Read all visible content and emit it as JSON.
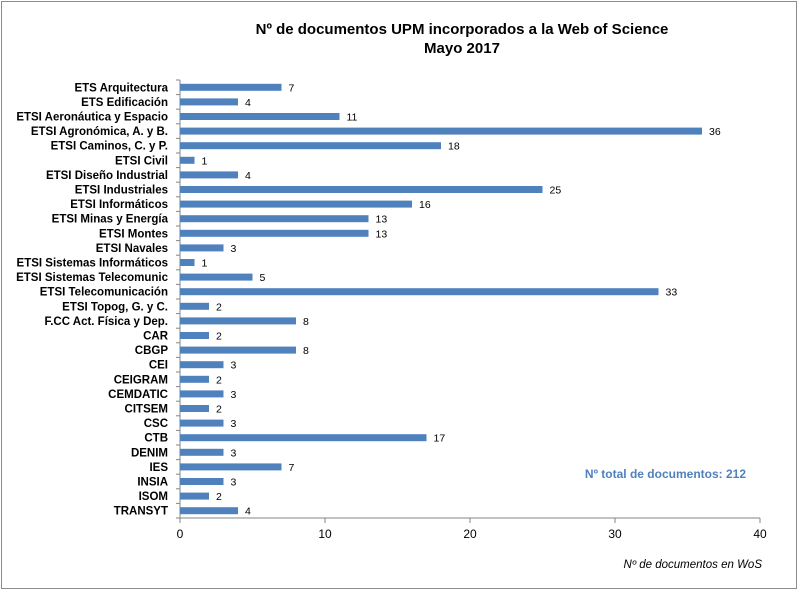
{
  "chart_data": {
    "type": "bar",
    "orientation": "horizontal",
    "title": [
      "Nº de documentos UPM incorporados a la Web of Science",
      "Mayo 2017"
    ],
    "xlabel": "Nº de documentos en WoS",
    "ylabel": "",
    "xlim": [
      0,
      40
    ],
    "xticks": [
      0,
      10,
      20,
      30,
      40
    ],
    "grid": false,
    "bar_color": "#4f81bd",
    "annotation": "Nº total de documentos:  212",
    "categories": [
      "ETS Arquitectura",
      "ETS Edificación",
      "ETSI Aeronáutica y Espacio",
      "ETSI Agronómica, A. y B.",
      "ETSI Caminos, C. y P.",
      "ETSI Civil",
      "ETSI Diseño Industrial",
      "ETSI Industriales",
      "ETSI Informáticos",
      "ETSI Minas y Energía",
      "ETSI Montes",
      "ETSI Navales",
      "ETSI Sistemas Informáticos",
      "ETSI Sistemas Telecomunic",
      "ETSI Telecomunicación",
      "ETSI Topog, G. y C.",
      "F.CC Act. Física y Dep.",
      "CAR",
      "CBGP",
      "CEI",
      "CEIGRAM",
      "CEMDATIC",
      "CITSEM",
      "CSC",
      "CTB",
      "DENIM",
      "IES",
      "INSIA",
      "ISOM",
      "TRANSYT"
    ],
    "values": [
      7,
      4,
      11,
      36,
      18,
      1,
      4,
      25,
      16,
      13,
      13,
      3,
      1,
      5,
      33,
      2,
      8,
      2,
      8,
      3,
      2,
      3,
      2,
      3,
      17,
      3,
      7,
      3,
      2,
      4
    ]
  }
}
